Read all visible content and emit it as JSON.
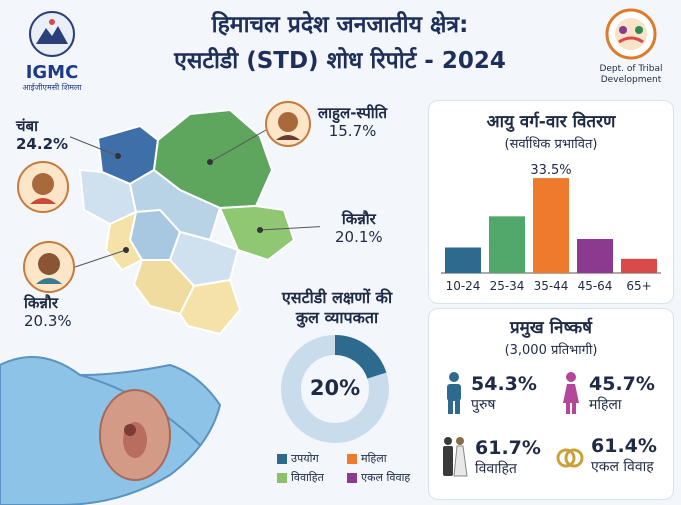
{
  "header": {
    "title_line1": "हिमाचल प्रदेश जनजातीय क्षेत्र:",
    "title_line2": "एसटीडी (STD) शोध रिपोर्ट - 2024",
    "left_logo_text": "IGMC",
    "left_logo_sub": "आईजीएमसी शिमला",
    "right_logo_text": "Dept. of Tribal Development"
  },
  "regions": [
    {
      "name": "चंबा",
      "value": "24.2%"
    },
    {
      "name": "लाहुल-स्पीति",
      "value": "15.7%"
    },
    {
      "name": "किन्नौर",
      "value": "20.1%"
    },
    {
      "name": "किन्नौर",
      "value": "20.3%"
    }
  ],
  "prevalence": {
    "title_line1": "एसटीडी लक्षणों की",
    "title_line2": "कुल व्यापकता",
    "value": "20%",
    "fraction": 0.2,
    "legend": [
      {
        "label": "उपयोग",
        "color": "#2e6a8e"
      },
      {
        "label": "महिला",
        "color": "#ee7a2b"
      },
      {
        "label": "विवाहित",
        "color": "#8cc16a"
      },
      {
        "label": "एकल विवाह",
        "color": "#8b3a8f"
      }
    ]
  },
  "age_distribution": {
    "title": "आयु वर्ग-वार वितरण",
    "subtitle": "(सर्वाधिक प्रभावित)",
    "peak_label": "33.5%"
  },
  "chart_data": {
    "type": "bar",
    "categories": [
      "10-24",
      "25-34",
      "35-44",
      "45-64",
      "65+"
    ],
    "values": [
      9,
      20,
      33.5,
      12,
      5
    ],
    "colors": [
      "#2e6a8e",
      "#52a86a",
      "#ee7a2b",
      "#8b3a8f",
      "#d94a4a"
    ],
    "title": "आयु वर्ग-वार वितरण",
    "data_labels": [
      "",
      "",
      "33.5%",
      "",
      ""
    ],
    "ylim": [
      0,
      36
    ]
  },
  "findings": {
    "title": "प्रमुख निष्कर्ष",
    "subtitle": "(3,000 प्रतिभागी)",
    "items": [
      {
        "value": "54.3%",
        "label": "पुरुष",
        "icon": "male-icon"
      },
      {
        "value": "45.7%",
        "label": "महिला",
        "icon": "female-icon"
      },
      {
        "value": "61.7%",
        "label": "विवाहित",
        "icon": "couple-icon"
      },
      {
        "value": "61.4%",
        "label": "एकल विवाह",
        "icon": "rings-icon"
      }
    ]
  }
}
